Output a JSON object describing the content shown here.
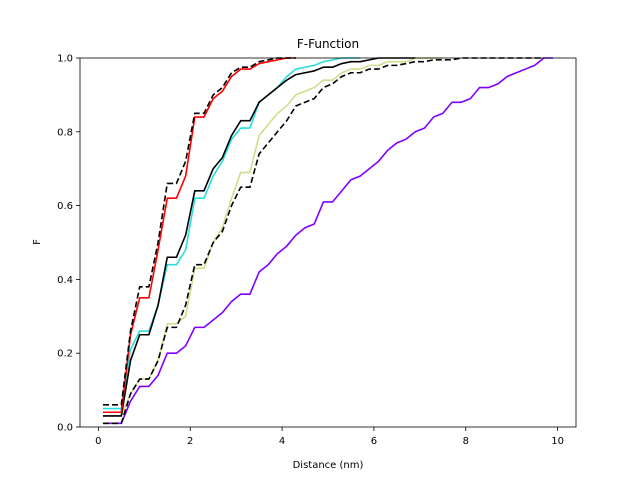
{
  "chart_data": {
    "type": "line",
    "title": "F-Function",
    "xlabel": "Distance (nm)",
    "ylabel": "F",
    "xlim": [
      -0.4,
      10.4
    ],
    "ylim": [
      0,
      1
    ],
    "xticks": [
      0,
      2,
      4,
      6,
      8,
      10
    ],
    "yticks": [
      0.0,
      0.2,
      0.4,
      0.6,
      0.8,
      1.0
    ],
    "xtick_labels": [
      "0",
      "2",
      "4",
      "6",
      "8",
      "10"
    ],
    "ytick_labels": [
      "0.0",
      "0.2",
      "0.4",
      "0.6",
      "0.8",
      "1.0"
    ],
    "grid": false,
    "legend": "none",
    "series": [
      {
        "color": "#8000ff",
        "dash": false,
        "x": [
          0.1,
          0.5,
          0.7,
          0.9,
          1.1,
          1.3,
          1.5,
          1.7,
          1.9,
          2.1,
          2.3,
          2.5,
          2.7,
          2.9,
          3.1,
          3.3,
          3.5,
          3.7,
          3.9,
          4.1,
          4.3,
          4.5,
          4.7,
          4.9,
          5.1,
          5.3,
          5.5,
          5.7,
          5.9,
          6.1,
          6.3,
          6.5,
          6.7,
          6.9,
          7.1,
          7.3,
          7.5,
          7.7,
          7.9,
          8.1,
          8.3,
          8.5,
          8.7,
          8.9,
          9.1,
          9.3,
          9.5,
          9.7,
          9.9
        ],
        "y": [
          0.01,
          0.01,
          0.07,
          0.11,
          0.11,
          0.14,
          0.2,
          0.2,
          0.22,
          0.27,
          0.27,
          0.29,
          0.31,
          0.34,
          0.36,
          0.36,
          0.42,
          0.44,
          0.47,
          0.49,
          0.52,
          0.54,
          0.55,
          0.61,
          0.61,
          0.64,
          0.67,
          0.68,
          0.7,
          0.72,
          0.75,
          0.77,
          0.78,
          0.8,
          0.81,
          0.84,
          0.85,
          0.88,
          0.88,
          0.89,
          0.92,
          0.92,
          0.93,
          0.95,
          0.96,
          0.97,
          0.98,
          1.0,
          1.0
        ]
      },
      {
        "color": "#d2dc8c",
        "dash": false,
        "x": [
          0.1,
          0.5,
          0.7,
          0.9,
          1.1,
          1.3,
          1.5,
          1.7,
          1.9,
          2.1,
          2.3,
          2.5,
          2.7,
          2.9,
          3.1,
          3.3,
          3.5,
          3.7,
          3.9,
          4.1,
          4.3,
          4.5,
          4.7,
          4.9,
          5.1,
          5.3,
          5.5,
          5.7,
          5.9,
          6.1,
          6.3,
          6.5,
          6.7,
          6.9,
          7.1,
          7.3,
          7.5
        ],
        "y": [
          0.03,
          0.03,
          0.09,
          0.13,
          0.13,
          0.18,
          0.28,
          0.28,
          0.3,
          0.43,
          0.43,
          0.5,
          0.54,
          0.62,
          0.69,
          0.69,
          0.79,
          0.82,
          0.85,
          0.87,
          0.9,
          0.91,
          0.92,
          0.94,
          0.94,
          0.96,
          0.97,
          0.97,
          0.98,
          0.98,
          0.99,
          0.99,
          0.99,
          1.0,
          1.0,
          1.0,
          1.0
        ]
      },
      {
        "color": "#000000",
        "dash": true,
        "x": [
          0.1,
          0.5,
          0.7,
          0.9,
          1.1,
          1.3,
          1.5,
          1.7,
          1.9,
          2.1,
          2.3,
          2.5,
          2.7,
          2.9,
          3.1,
          3.3,
          3.5,
          3.7,
          3.9,
          4.1,
          4.3,
          4.5,
          4.7,
          4.9,
          5.1,
          5.3,
          5.5,
          5.7,
          5.9,
          6.1,
          6.3,
          6.5,
          6.7,
          6.9,
          7.1,
          7.3,
          7.5,
          7.7,
          7.9,
          8.1,
          8.3,
          8.5,
          8.7,
          8.9,
          9.1,
          9.3,
          9.5,
          9.7
        ],
        "y": [
          0.01,
          0.01,
          0.09,
          0.13,
          0.13,
          0.18,
          0.27,
          0.27,
          0.33,
          0.44,
          0.44,
          0.5,
          0.53,
          0.6,
          0.65,
          0.65,
          0.74,
          0.77,
          0.8,
          0.83,
          0.87,
          0.88,
          0.89,
          0.92,
          0.93,
          0.95,
          0.96,
          0.96,
          0.97,
          0.97,
          0.98,
          0.98,
          0.985,
          0.99,
          0.99,
          0.995,
          0.995,
          0.995,
          1.0,
          1.0,
          1.0,
          1.0,
          1.0,
          1.0,
          1.0,
          1.0,
          1.0,
          1.0
        ]
      },
      {
        "color": "#2adddd",
        "dash": false,
        "x": [
          0.1,
          0.5,
          0.7,
          0.9,
          1.1,
          1.3,
          1.5,
          1.7,
          1.9,
          2.1,
          2.3,
          2.5,
          2.7,
          2.9,
          3.1,
          3.3,
          3.5,
          3.7,
          3.9,
          4.1,
          4.3,
          4.5,
          4.7,
          4.9,
          5.1,
          5.3,
          5.5,
          5.7
        ],
        "y": [
          0.05,
          0.05,
          0.21,
          0.26,
          0.26,
          0.33,
          0.44,
          0.44,
          0.48,
          0.62,
          0.62,
          0.68,
          0.72,
          0.78,
          0.81,
          0.81,
          0.88,
          0.9,
          0.92,
          0.95,
          0.97,
          0.975,
          0.98,
          0.99,
          0.995,
          1.0,
          1.0,
          1.0
        ]
      },
      {
        "color": "#000000",
        "dash": false,
        "x": [
          0.1,
          0.5,
          0.7,
          0.9,
          1.1,
          1.3,
          1.5,
          1.7,
          1.9,
          2.1,
          2.3,
          2.5,
          2.7,
          2.9,
          3.1,
          3.3,
          3.5,
          3.7,
          3.9,
          4.1,
          4.3,
          4.5,
          4.7,
          4.9,
          5.1,
          5.3,
          5.5,
          5.7,
          5.9,
          6.1,
          6.3,
          6.5,
          6.7,
          6.9
        ],
        "y": [
          0.03,
          0.03,
          0.18,
          0.25,
          0.25,
          0.33,
          0.46,
          0.46,
          0.52,
          0.64,
          0.64,
          0.7,
          0.73,
          0.79,
          0.83,
          0.83,
          0.88,
          0.9,
          0.92,
          0.94,
          0.955,
          0.96,
          0.965,
          0.975,
          0.975,
          0.985,
          0.99,
          0.99,
          0.995,
          1.0,
          1.0,
          1.0,
          1.0,
          1.0
        ]
      },
      {
        "color": "#ff0000",
        "dash": false,
        "x": [
          0.1,
          0.5,
          0.7,
          0.9,
          1.1,
          1.3,
          1.5,
          1.7,
          1.9,
          2.1,
          2.3,
          2.5,
          2.7,
          2.9,
          3.1,
          3.3,
          3.5,
          3.7,
          3.9,
          4.1,
          4.3
        ],
        "y": [
          0.04,
          0.04,
          0.25,
          0.35,
          0.35,
          0.48,
          0.62,
          0.62,
          0.68,
          0.84,
          0.84,
          0.89,
          0.91,
          0.95,
          0.97,
          0.97,
          0.985,
          0.99,
          0.995,
          1.0,
          1.0
        ]
      },
      {
        "color": "#000000",
        "dash": true,
        "x": [
          0.1,
          0.5,
          0.7,
          0.9,
          1.1,
          1.3,
          1.5,
          1.7,
          1.9,
          2.1,
          2.3,
          2.5,
          2.7,
          2.9,
          3.1,
          3.3,
          3.5,
          3.7,
          3.9,
          4.1,
          4.3
        ],
        "y": [
          0.06,
          0.06,
          0.26,
          0.38,
          0.38,
          0.5,
          0.66,
          0.66,
          0.72,
          0.85,
          0.85,
          0.9,
          0.92,
          0.96,
          0.975,
          0.975,
          0.99,
          0.995,
          1.0,
          1.0,
          1.0
        ]
      }
    ]
  }
}
